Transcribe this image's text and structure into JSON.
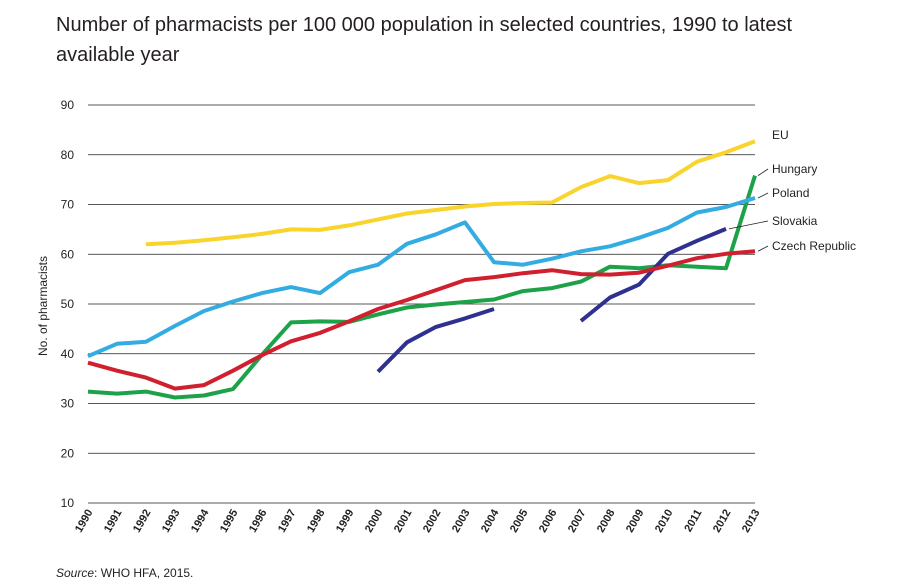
{
  "chart_data": {
    "type": "line",
    "title": "Number of pharmacists per 100 000 population in selected countries, 1990 to latest available year",
    "xlabel": "",
    "ylabel": "No. of pharmacists",
    "ylim": [
      10,
      90
    ],
    "yticks": [
      10,
      20,
      30,
      40,
      50,
      60,
      70,
      80,
      90
    ],
    "x": [
      "1990",
      "1991",
      "1992",
      "1993",
      "1994",
      "1995",
      "1996",
      "1997",
      "1998",
      "1999",
      "2000",
      "2001",
      "2002",
      "2003",
      "2004",
      "2005",
      "2006",
      "2007",
      "2008",
      "2009",
      "2010",
      "2011",
      "2012",
      "2013"
    ],
    "grid": true,
    "series": [
      {
        "name": "EU",
        "color": "#f9d42c",
        "values": [
          null,
          null,
          62,
          62.3,
          62.8,
          63.4,
          64.1,
          65,
          64.9,
          65.8,
          67,
          68.2,
          68.9,
          69.6,
          70.1,
          70.3,
          70.4,
          73.5,
          75.7,
          74.3,
          74.9,
          78.6,
          80.5,
          82.7
        ]
      },
      {
        "name": "Hungary",
        "color": "#1da24a",
        "values": [
          32.4,
          32,
          32.4,
          31.2,
          31.6,
          32.9,
          39.8,
          46.3,
          46.5,
          46.4,
          47.9,
          49.3,
          49.9,
          50.4,
          50.9,
          52.6,
          53.2,
          54.5,
          57.5,
          57.2,
          57.8,
          57.5,
          57.2,
          75.8
        ]
      },
      {
        "name": "Poland",
        "color": "#33ace2",
        "values": [
          39.5,
          42,
          42.4,
          45.6,
          48.6,
          50.5,
          52.2,
          53.4,
          52.2,
          56.4,
          57.9,
          62.1,
          64,
          66.4,
          58.4,
          57.9,
          59.1,
          60.6,
          61.6,
          63.3,
          65.3,
          68.4,
          69.5,
          71.3
        ]
      },
      {
        "name": "Slovakia",
        "color": "#2e3190",
        "values": [
          null,
          null,
          null,
          null,
          null,
          null,
          null,
          null,
          null,
          null,
          36.4,
          42.3,
          45.4,
          47.1,
          49,
          null,
          null,
          46.6,
          51.3,
          53.9,
          60.1,
          62.7,
          65.1,
          null
        ]
      },
      {
        "name": "Czech Republic",
        "color": "#d0202f",
        "values": [
          38.2,
          36.6,
          35.2,
          33,
          33.7,
          36.6,
          39.7,
          42.5,
          44.2,
          46.5,
          49,
          50.8,
          52.8,
          54.8,
          55.4,
          56.2,
          56.8,
          56,
          55.9,
          56.3,
          57.7,
          59.2,
          60.1,
          60.6
        ]
      }
    ],
    "legend_placement": "right"
  },
  "source": {
    "label": "Source",
    "text": ": WHO HFA, 2015."
  }
}
